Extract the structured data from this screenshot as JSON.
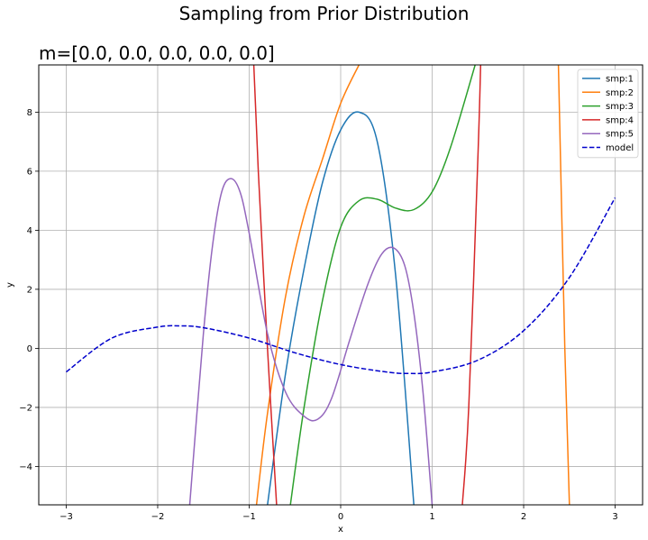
{
  "chart_data": {
    "type": "line",
    "suptitle": "Sampling from Prior Distribution",
    "title": "m=[0.0, 0.0, 0.0, 0.0, 0.0]",
    "xlabel": "x",
    "ylabel": "y",
    "xlim": [
      -3.3,
      3.3
    ],
    "ylim": [
      -5.3,
      9.6
    ],
    "xticks": [
      -3,
      -2,
      -1,
      0,
      1,
      2,
      3
    ],
    "yticks": [
      -4,
      -2,
      0,
      2,
      4,
      6,
      8
    ],
    "xticklabels": [
      "−3",
      "−2",
      "−1",
      "0",
      "1",
      "2",
      "3"
    ],
    "yticklabels": [
      "−4",
      "−2",
      "0",
      "2",
      "4",
      "6",
      "8"
    ],
    "grid": true,
    "legend_position": "top-right",
    "series": [
      {
        "name": "smp:1",
        "color": "#1f77b4",
        "style": "solid",
        "x": [
          -0.8,
          -0.6,
          -0.4,
          -0.2,
          0.0,
          0.2,
          0.4,
          0.6,
          0.8
        ],
        "y": [
          -5.3,
          -0.8,
          2.7,
          5.6,
          7.4,
          8.0,
          7.0,
          2.5,
          -5.3
        ]
      },
      {
        "name": "smp:2",
        "color": "#ff7f0e",
        "style": "solid",
        "x": [
          -0.92,
          -0.8,
          -0.6,
          -0.4,
          -0.2,
          0.0,
          0.2
        ],
        "y": [
          -5.3,
          -2.2,
          1.8,
          4.5,
          6.4,
          8.3,
          9.6
        ]
      },
      {
        "name": "smp:3",
        "color": "#2ca02c",
        "style": "solid",
        "x": [
          -0.55,
          -0.4,
          -0.2,
          0.0,
          0.2,
          0.4,
          0.6,
          0.8,
          1.0,
          1.2,
          1.47
        ],
        "y": [
          -5.3,
          -2.0,
          1.6,
          4.1,
          5.0,
          5.05,
          4.75,
          4.7,
          5.3,
          6.8,
          9.6
        ]
      },
      {
        "name": "smp:4",
        "color": "#d62728",
        "style": "solid",
        "x": [
          -0.95,
          -0.9,
          -0.8,
          -0.7
        ],
        "y": [
          9.6,
          6.0,
          0.0,
          -5.3
        ]
      },
      {
        "name": "smp:4",
        "color": "#d62728",
        "style": "solid",
        "x": [
          1.33,
          1.4,
          1.5,
          1.53
        ],
        "y": [
          -5.3,
          -2.0,
          6.5,
          9.6
        ]
      },
      {
        "name": "smp:2",
        "color": "#ff7f0e",
        "style": "solid",
        "x": [
          2.38,
          2.45,
          2.5
        ],
        "y": [
          9.6,
          0.0,
          -5.3
        ]
      },
      {
        "name": "smp:5",
        "color": "#9467bd",
        "style": "solid",
        "x": [
          -1.65,
          -1.5,
          -1.4,
          -1.3,
          -1.2,
          -1.1,
          -1.0,
          -0.8,
          -0.6,
          -0.4,
          -0.25,
          -0.1,
          0.1,
          0.3,
          0.45,
          0.58,
          0.7,
          0.8,
          0.9,
          1.0
        ],
        "y": [
          -5.3,
          0.5,
          3.5,
          5.3,
          5.75,
          5.3,
          3.9,
          0.5,
          -1.5,
          -2.3,
          -2.4,
          -1.7,
          0.3,
          2.2,
          3.2,
          3.4,
          2.8,
          1.2,
          -1.5,
          -5.3
        ]
      },
      {
        "name": "model",
        "color": "#0000cc",
        "style": "dashed",
        "x": [
          -3.0,
          -2.5,
          -2.0,
          -1.75,
          -1.5,
          -1.0,
          -0.5,
          0.0,
          0.5,
          0.75,
          1.0,
          1.5,
          2.0,
          2.5,
          3.0
        ],
        "y": [
          -0.8,
          0.35,
          0.72,
          0.76,
          0.7,
          0.35,
          -0.15,
          -0.55,
          -0.8,
          -0.85,
          -0.8,
          -0.4,
          0.6,
          2.4,
          5.1
        ]
      }
    ],
    "legend": [
      {
        "label": "smp:1",
        "color": "#1f77b4",
        "style": "solid"
      },
      {
        "label": "smp:2",
        "color": "#ff7f0e",
        "style": "solid"
      },
      {
        "label": "smp:3",
        "color": "#2ca02c",
        "style": "solid"
      },
      {
        "label": "smp:4",
        "color": "#d62728",
        "style": "solid"
      },
      {
        "label": "smp:5",
        "color": "#9467bd",
        "style": "solid"
      },
      {
        "label": "model",
        "color": "#0000cc",
        "style": "dashed"
      }
    ]
  }
}
